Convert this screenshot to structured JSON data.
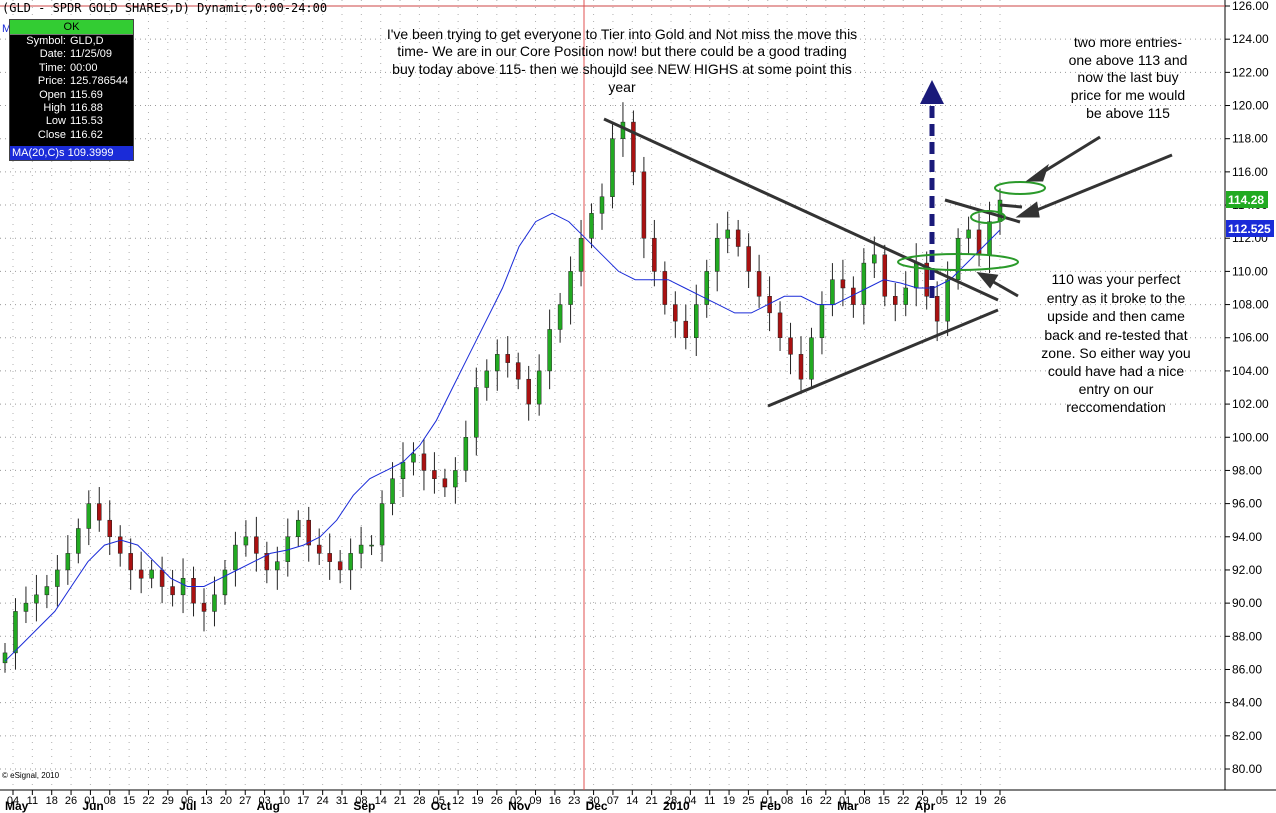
{
  "chart_data": {
    "type": "candlestick",
    "title": "(GLD - SPDR GOLD SHARES,D) Dynamic,0:00-24:00",
    "instrument": "GLD",
    "ylim": [
      79.5,
      126.5
    ],
    "y_ticks": [
      80,
      82,
      84,
      86,
      88,
      90,
      92,
      94,
      96,
      98,
      100,
      102,
      104,
      106,
      108,
      110,
      112,
      114,
      116,
      118,
      120,
      122,
      124,
      126
    ],
    "y_tick_labels": [
      "80.00",
      "82.00",
      "84.00",
      "86.00",
      "88.00",
      "90.00",
      "92.00",
      "94.00",
      "96.00",
      "98.00",
      "100.00",
      "102.00",
      "104.00",
      "106.00",
      "108.00",
      "110.00",
      "112.00",
      "114.00",
      "116.00",
      "118.00",
      "120.00",
      "122.00",
      "124.00",
      "126.00"
    ],
    "grid": true,
    "x_day_labels": [
      "04",
      "11",
      "18",
      "26",
      "01",
      "08",
      "15",
      "22",
      "29",
      "06",
      "13",
      "20",
      "27",
      "03",
      "10",
      "17",
      "24",
      "31",
      "08",
      "14",
      "21",
      "28",
      "05",
      "12",
      "19",
      "26",
      "02",
      "09",
      "16",
      "23",
      "30",
      "07",
      "14",
      "21",
      "28",
      "04",
      "11",
      "19",
      "25",
      "01",
      "08",
      "16",
      "22",
      "01",
      "08",
      "15",
      "22",
      "29",
      "05",
      "12",
      "19",
      "26"
    ],
    "x_month_labels": [
      "May",
      "Jun",
      "Jul",
      "Aug",
      "Sep",
      "Oct",
      "Nov",
      "Dec",
      "2010",
      "Feb",
      "Mar",
      "Apr"
    ],
    "closes": [
      87.0,
      89.5,
      90.0,
      90.5,
      91.0,
      92.0,
      93.0,
      94.5,
      96.0,
      95.0,
      94.0,
      93.0,
      92.0,
      91.5,
      92.0,
      91.0,
      90.5,
      91.5,
      90.0,
      89.5,
      90.5,
      92.0,
      93.5,
      94.0,
      93.0,
      92.0,
      92.5,
      94.0,
      95.0,
      93.5,
      93.0,
      92.5,
      92.0,
      93.0,
      93.5,
      93.5,
      96.0,
      97.5,
      98.5,
      99.0,
      98.0,
      97.5,
      97.0,
      98.0,
      100.0,
      103.0,
      104.0,
      105.0,
      104.5,
      103.5,
      102.0,
      104.0,
      106.5,
      108.0,
      110.0,
      112.0,
      113.5,
      114.5,
      118.0,
      119.0,
      116.0,
      112.0,
      110.0,
      108.0,
      107.0,
      106.0,
      108.0,
      110.0,
      112.0,
      112.5,
      111.5,
      110.0,
      108.5,
      107.5,
      106.0,
      105.0,
      103.5,
      106.0,
      108.0,
      109.5,
      109.0,
      108.0,
      110.5,
      111.0,
      108.5,
      108.0,
      109.0,
      110.5,
      108.5,
      107.0,
      109.5,
      112.0,
      112.5,
      111.0,
      113.0,
      114.3
    ],
    "moving_average": {
      "name": "MA(20,C)s",
      "values": [
        86.5,
        87.5,
        88.5,
        89.5,
        91.0,
        92.5,
        93.5,
        93.8,
        93.5,
        92.5,
        91.5,
        91.0,
        91.0,
        91.5,
        92.0,
        92.5,
        93.0,
        93.2,
        93.5,
        94.0,
        95.0,
        96.5,
        97.5,
        98.0,
        98.5,
        99.5,
        101.0,
        103.0,
        105.0,
        107.0,
        109.0,
        111.5,
        113.0,
        113.5,
        113.0,
        112.0,
        111.0,
        110.0,
        109.5,
        109.5,
        109.5,
        109.0,
        108.5,
        108.0,
        107.5,
        107.5,
        108.0,
        108.5,
        108.5,
        108.0,
        108.0,
        108.5,
        109.0,
        109.5,
        109.3,
        109.0,
        109.0,
        109.5,
        110.5,
        111.5,
        112.5
      ],
      "last_value": "112.525",
      "tag_color": "#1a2bd8"
    },
    "last_price": "114.28",
    "last_price_tag_color": "#22aa22",
    "candle_up_color": "#22aa22",
    "candle_down_color": "#aa1111",
    "ma_color": "#1a2bd8",
    "annotations": [
      "I've been trying to get everyone to Tier into Gold and Not miss the move this",
      "time-  We are in our Core Position now!  but there could be a good trading",
      "buy today above 115- then we shoujld see NEW HIGHS at some point this",
      "year"
    ],
    "annotation_right_top": [
      "two more entries-",
      "one above 113 and",
      "now the last buy",
      "price for me would",
      "be above 115"
    ],
    "annotation_right_bottom": [
      "110 was your perfect",
      "entry as it broke to the",
      "upside and then came",
      "back and re-tested that",
      "zone.  So either way you",
      "could have had a nice",
      "entry on our",
      "reccomendation"
    ],
    "footer": "© eSignal, 2010"
  },
  "info_box": {
    "status": "OK",
    "rows": [
      {
        "label": "Symbol:",
        "value": "GLD,D"
      },
      {
        "label": "Date:",
        "value": "11/25/09"
      },
      {
        "label": "Time:",
        "value": "00:00"
      },
      {
        "label": "Price:",
        "value": "125.786544"
      },
      {
        "label": "Open",
        "value": "115.69"
      },
      {
        "label": "High",
        "value": "116.88"
      },
      {
        "label": "Low",
        "value": "115.53"
      },
      {
        "label": "Close",
        "value": "116.62"
      }
    ],
    "ma": "MA(20,C)s 109.3999"
  },
  "corner_mark": "M"
}
